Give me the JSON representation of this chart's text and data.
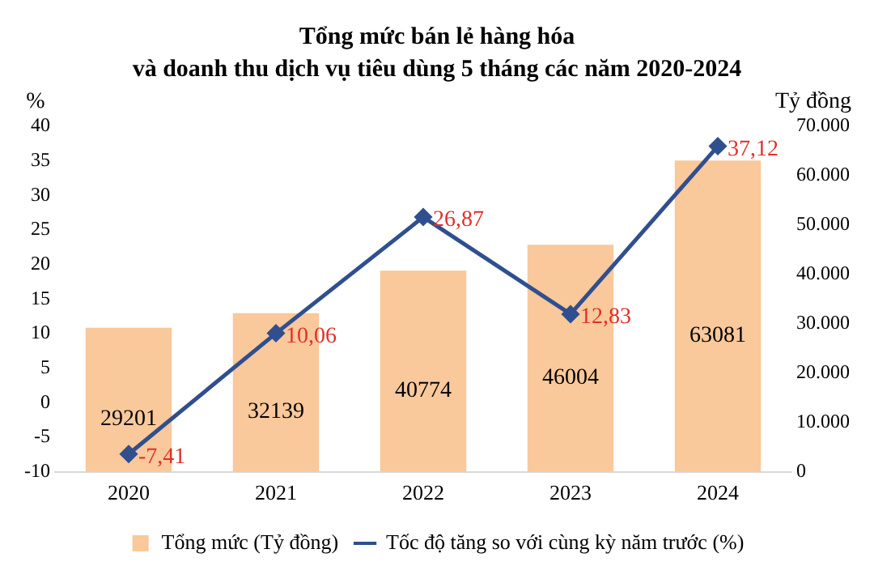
{
  "chart_data": {
    "type": "bar",
    "title": "Tổng mức bán lẻ hàng hóa",
    "subtitle": "và doanh thu dịch vụ tiêu dùng 5 tháng các năm 2020-2024",
    "ylabel": "%",
    "y2label": "Tỷ đồng",
    "categories": [
      "2020",
      "2021",
      "2022",
      "2023",
      "2024"
    ],
    "series": [
      {
        "name": "Tổng mức (Tỷ đồng)",
        "axis": "y2",
        "color": "#f9c89b",
        "values": [
          29201,
          32139,
          40774,
          46004,
          63081
        ],
        "value_labels": [
          "29201",
          "32139",
          "40774",
          "46004",
          "63081"
        ]
      },
      {
        "name": "Tốc độ tăng so với cùng kỳ năm trước (%)",
        "type": "line",
        "axis": "y",
        "color": "#2f4f8f",
        "marker": "diamond",
        "values": [
          -7.41,
          10.06,
          26.87,
          12.83,
          37.12
        ],
        "value_labels": [
          "-7,41",
          "10,06",
          "26,87",
          "12,83",
          "37,12"
        ]
      }
    ],
    "ylim": [
      -10,
      40
    ],
    "yticks": [
      -10,
      -5,
      0,
      5,
      10,
      15,
      20,
      25,
      30,
      35,
      40
    ],
    "y2lim": [
      0,
      70000
    ],
    "y2ticks": [
      0,
      {
        "value": 10000,
        "label": "10.000"
      },
      {
        "value": 20000,
        "label": "20.000"
      },
      {
        "value": 30000,
        "label": "30.000"
      },
      {
        "value": 40000,
        "label": "40.000"
      },
      {
        "value": 50000,
        "label": "50.000"
      },
      {
        "value": 60000,
        "label": "60.000"
      },
      {
        "value": 70000,
        "label": "70.000"
      }
    ],
    "grid": false,
    "legend": "bottom"
  }
}
